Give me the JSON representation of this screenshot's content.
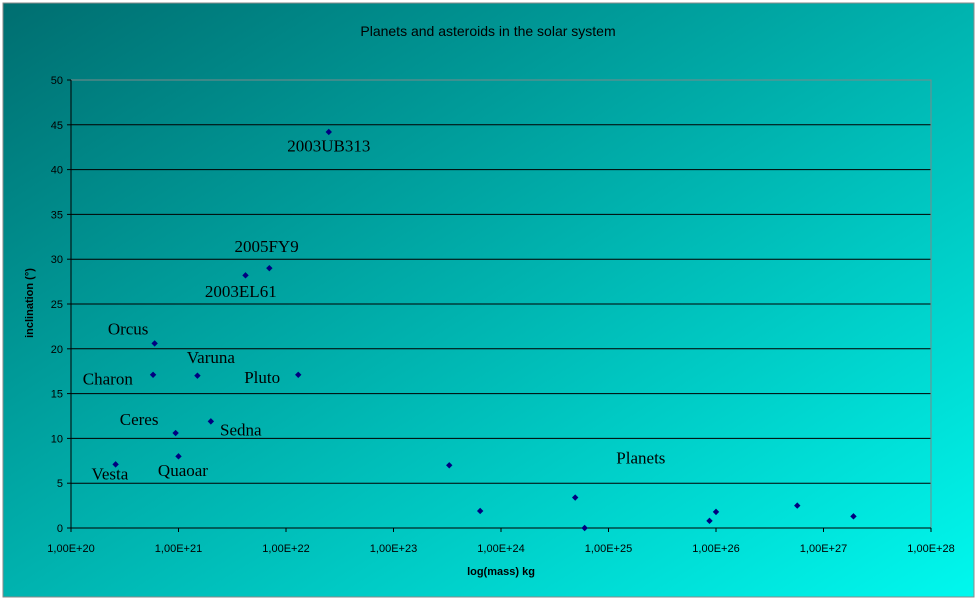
{
  "chart_data": {
    "type": "scatter",
    "title": "Planets and asteroids in the solar system",
    "xlabel": "log(mass) kg",
    "ylabel": "inclination (°)",
    "x_scale": "log",
    "xlim": [
      1e+20,
      1e+28
    ],
    "ylim": [
      0,
      50
    ],
    "y_ticks": [
      0,
      5,
      10,
      15,
      20,
      25,
      30,
      35,
      40,
      45,
      50
    ],
    "y_tick_labels": [
      "0",
      "5",
      "10",
      "15",
      "20",
      "25",
      "30",
      "35",
      "40",
      "45",
      "50"
    ],
    "x_ticks": [
      1e+20,
      1e+21,
      1e+22,
      1e+23,
      1e+24,
      1e+25,
      1e+26,
      1e+27,
      1e+28
    ],
    "x_tick_labels": [
      "1,00E+20",
      "1,00E+21",
      "1,00E+22",
      "1,00E+23",
      "1,00E+24",
      "1,00E+25",
      "1,00E+26",
      "1,00E+27",
      "1,00E+28"
    ],
    "grid": "horizontal",
    "legend": "none",
    "marker_color": "#000080",
    "gridline_color": "#000000",
    "background_gradient": [
      "#006e70",
      "#00f8ee"
    ],
    "points": [
      {
        "x": 2.6e+20,
        "y": 7.1
      },
      {
        "x": 5.8e+20,
        "y": 17.1
      },
      {
        "x": 6e+20,
        "y": 20.6
      },
      {
        "x": 9.4e+20,
        "y": 10.6
      },
      {
        "x": 1e+21,
        "y": 8.0
      },
      {
        "x": 1.5e+21,
        "y": 17.0
      },
      {
        "x": 2e+21,
        "y": 11.9
      },
      {
        "x": 4.2e+21,
        "y": 28.2
      },
      {
        "x": 7e+21,
        "y": 29.0
      },
      {
        "x": 1.3e+22,
        "y": 17.1
      },
      {
        "x": 2.5e+22,
        "y": 44.2
      },
      {
        "x": 3.3e+23,
        "y": 7.0
      },
      {
        "x": 6.4e+23,
        "y": 1.9
      },
      {
        "x": 4.9e+24,
        "y": 3.4
      },
      {
        "x": 6e+24,
        "y": 0.0
      },
      {
        "x": 8.7e+25,
        "y": 0.8
      },
      {
        "x": 1e+26,
        "y": 1.8
      },
      {
        "x": 5.7e+26,
        "y": 2.5
      },
      {
        "x": 1.9e+27,
        "y": 1.3
      }
    ],
    "annotations": [
      {
        "text": "2003UB313",
        "x": 2.5e+22,
        "y": 42.0,
        "anchor": "middle"
      },
      {
        "text": "2005FY9",
        "x": 6.6e+21,
        "y": 30.8,
        "anchor": "middle"
      },
      {
        "text": "2003EL61",
        "x": 3.8e+21,
        "y": 25.8,
        "anchor": "middle"
      },
      {
        "text": "Orcus",
        "x": 3.4e+20,
        "y": 21.6,
        "anchor": "middle"
      },
      {
        "text": "Varuna",
        "x": 2e+21,
        "y": 18.4,
        "anchor": "middle"
      },
      {
        "text": "Charon",
        "x": 2.2e+20,
        "y": 16.0,
        "anchor": "middle"
      },
      {
        "text": "Pluto",
        "x": 6e+21,
        "y": 16.2,
        "anchor": "middle"
      },
      {
        "text": "Ceres",
        "x": 4.3e+20,
        "y": 11.5,
        "anchor": "middle"
      },
      {
        "text": "Sedna",
        "x": 3.8e+21,
        "y": 10.3,
        "anchor": "middle"
      },
      {
        "text": "Quaoar",
        "x": 1.1e+21,
        "y": 5.8,
        "anchor": "middle"
      },
      {
        "text": "Vesta",
        "x": 2.3e+20,
        "y": 5.4,
        "anchor": "middle"
      },
      {
        "text": "Planets",
        "x": 2e+25,
        "y": 7.2,
        "anchor": "middle"
      }
    ]
  }
}
